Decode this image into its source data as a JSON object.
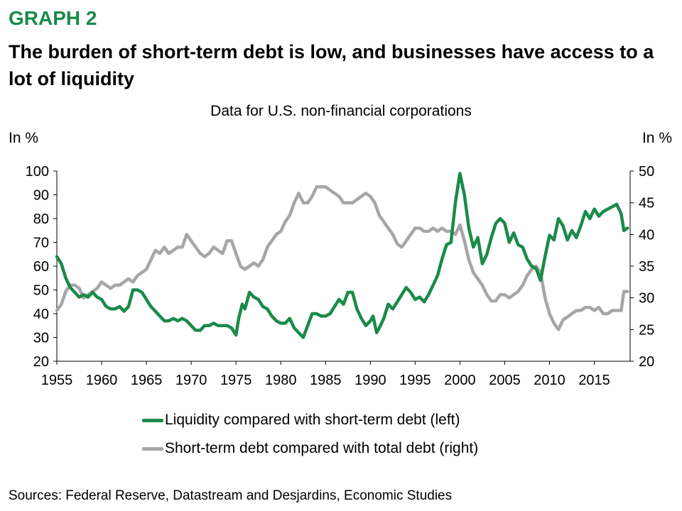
{
  "header": {
    "graph_label": "GRAPH 2",
    "headline": "The burden of short-term debt is low, and businesses have access to a lot of liquidity",
    "subtitle": "Data for U.S. non-financial corporations"
  },
  "footer": {
    "sources": "Sources: Federal Reserve, Datastream and Desjardins, Economic Studies"
  },
  "chart_data": {
    "type": "line",
    "title": "The burden of short-term debt is low, and businesses have access to a lot of liquidity",
    "subtitle": "Data for U.S. non-financial corporations",
    "ylabel_left": "In %",
    "ylabel_right": "In %",
    "xlim": [
      1955,
      2019
    ],
    "ylim_left": [
      20,
      100
    ],
    "ylim_right": [
      20,
      50
    ],
    "x_ticks": [
      1955,
      1960,
      1965,
      1970,
      1975,
      1980,
      1985,
      1990,
      1995,
      2000,
      2005,
      2010,
      2015
    ],
    "y_ticks_left": [
      20,
      30,
      40,
      50,
      60,
      70,
      80,
      90,
      100
    ],
    "y_ticks_right": [
      20,
      25,
      30,
      35,
      40,
      45,
      50
    ],
    "grid": false,
    "legend_position": "bottom-center",
    "series": [
      {
        "name": "Liquidity compared with short-term debt (left)",
        "axis": "left",
        "color": "#1a8a4a",
        "points": [
          [
            1955,
            64
          ],
          [
            1955.5,
            61
          ],
          [
            1956,
            55
          ],
          [
            1956.5,
            51
          ],
          [
            1957,
            49
          ],
          [
            1957.5,
            47
          ],
          [
            1958,
            48
          ],
          [
            1958.5,
            47
          ],
          [
            1959,
            49
          ],
          [
            1959.5,
            47
          ],
          [
            1960,
            46
          ],
          [
            1960.5,
            43
          ],
          [
            1961,
            42
          ],
          [
            1961.5,
            42
          ],
          [
            1962,
            43
          ],
          [
            1962.5,
            41
          ],
          [
            1963,
            43
          ],
          [
            1963.5,
            50
          ],
          [
            1964,
            50
          ],
          [
            1964.5,
            49
          ],
          [
            1965,
            46
          ],
          [
            1965.5,
            43
          ],
          [
            1966,
            41
          ],
          [
            1966.5,
            39
          ],
          [
            1967,
            37
          ],
          [
            1967.5,
            37
          ],
          [
            1968,
            38
          ],
          [
            1968.5,
            37
          ],
          [
            1969,
            38
          ],
          [
            1969.5,
            37
          ],
          [
            1970,
            35
          ],
          [
            1970.5,
            33
          ],
          [
            1971,
            33
          ],
          [
            1971.5,
            35
          ],
          [
            1972,
            35
          ],
          [
            1972.5,
            36
          ],
          [
            1973,
            35
          ],
          [
            1973.5,
            35
          ],
          [
            1974,
            35
          ],
          [
            1974.5,
            34
          ],
          [
            1975,
            31
          ],
          [
            1975.3,
            38
          ],
          [
            1975.7,
            44
          ],
          [
            1976,
            42
          ],
          [
            1976.5,
            49
          ],
          [
            1977,
            47
          ],
          [
            1977.5,
            46
          ],
          [
            1978,
            43
          ],
          [
            1978.5,
            42
          ],
          [
            1979,
            39
          ],
          [
            1979.5,
            37
          ],
          [
            1980,
            36
          ],
          [
            1980.5,
            36
          ],
          [
            1981,
            38
          ],
          [
            1981.5,
            34
          ],
          [
            1982,
            32
          ],
          [
            1982.5,
            30
          ],
          [
            1983,
            35
          ],
          [
            1983.5,
            40
          ],
          [
            1984,
            40
          ],
          [
            1984.5,
            39
          ],
          [
            1985,
            39
          ],
          [
            1985.5,
            40
          ],
          [
            1986,
            43
          ],
          [
            1986.5,
            46
          ],
          [
            1987,
            44
          ],
          [
            1987.5,
            49
          ],
          [
            1988,
            49
          ],
          [
            1988.5,
            42
          ],
          [
            1989,
            38
          ],
          [
            1989.5,
            35
          ],
          [
            1990,
            37
          ],
          [
            1990.3,
            39
          ],
          [
            1990.7,
            32
          ],
          [
            1991,
            34
          ],
          [
            1991.5,
            38
          ],
          [
            1992,
            44
          ],
          [
            1992.5,
            42
          ],
          [
            1993,
            45
          ],
          [
            1993.5,
            48
          ],
          [
            1994,
            51
          ],
          [
            1994.5,
            49
          ],
          [
            1995,
            46
          ],
          [
            1995.5,
            47
          ],
          [
            1996,
            45
          ],
          [
            1996.5,
            48
          ],
          [
            1997,
            52
          ],
          [
            1997.5,
            56
          ],
          [
            1998,
            63
          ],
          [
            1998.5,
            69
          ],
          [
            1999,
            70
          ],
          [
            1999.5,
            87
          ],
          [
            2000,
            99
          ],
          [
            2000.5,
            90
          ],
          [
            2001,
            76
          ],
          [
            2001.5,
            68
          ],
          [
            2002,
            72
          ],
          [
            2002.5,
            61
          ],
          [
            2003,
            65
          ],
          [
            2003.5,
            72
          ],
          [
            2004,
            78
          ],
          [
            2004.5,
            80
          ],
          [
            2005,
            78
          ],
          [
            2005.5,
            70
          ],
          [
            2006,
            74
          ],
          [
            2006.5,
            69
          ],
          [
            2007,
            68
          ],
          [
            2007.5,
            63
          ],
          [
            2008,
            60
          ],
          [
            2008.5,
            59
          ],
          [
            2009,
            54
          ],
          [
            2009.5,
            64
          ],
          [
            2010,
            73
          ],
          [
            2010.5,
            71
          ],
          [
            2011,
            80
          ],
          [
            2011.5,
            77
          ],
          [
            2012,
            71
          ],
          [
            2012.5,
            75
          ],
          [
            2013,
            72
          ],
          [
            2013.5,
            77
          ],
          [
            2014,
            83
          ],
          [
            2014.5,
            80
          ],
          [
            2015,
            84
          ],
          [
            2015.5,
            81
          ],
          [
            2016,
            83
          ],
          [
            2016.5,
            84
          ],
          [
            2017,
            85
          ],
          [
            2017.5,
            86
          ],
          [
            2018,
            82
          ],
          [
            2018.3,
            75
          ],
          [
            2018.7,
            76
          ]
        ]
      },
      {
        "name": "Short-term debt compared with total debt (right)",
        "axis": "right",
        "color": "#a6a6a6",
        "points": [
          [
            1955,
            28
          ],
          [
            1955.5,
            29
          ],
          [
            1956,
            31
          ],
          [
            1956.5,
            32
          ],
          [
            1957,
            32
          ],
          [
            1957.5,
            31.5
          ],
          [
            1958,
            30
          ],
          [
            1958.5,
            30.5
          ],
          [
            1959,
            31
          ],
          [
            1959.5,
            31.5
          ],
          [
            1960,
            32.5
          ],
          [
            1960.5,
            32
          ],
          [
            1961,
            31.5
          ],
          [
            1961.5,
            32
          ],
          [
            1962,
            32
          ],
          [
            1962.5,
            32.5
          ],
          [
            1963,
            33
          ],
          [
            1963.5,
            32.5
          ],
          [
            1964,
            33.5
          ],
          [
            1964.5,
            34
          ],
          [
            1965,
            34.5
          ],
          [
            1965.5,
            36
          ],
          [
            1966,
            37.5
          ],
          [
            1966.5,
            37
          ],
          [
            1967,
            38
          ],
          [
            1967.5,
            37
          ],
          [
            1968,
            37.5
          ],
          [
            1968.5,
            38
          ],
          [
            1969,
            38
          ],
          [
            1969.5,
            40
          ],
          [
            1970,
            39
          ],
          [
            1970.5,
            38
          ],
          [
            1971,
            37
          ],
          [
            1971.5,
            36.5
          ],
          [
            1972,
            37
          ],
          [
            1972.5,
            38
          ],
          [
            1973,
            37.5
          ],
          [
            1973.5,
            37
          ],
          [
            1974,
            39
          ],
          [
            1974.5,
            39
          ],
          [
            1975,
            37
          ],
          [
            1975.5,
            35
          ],
          [
            1976,
            34.5
          ],
          [
            1976.5,
            35
          ],
          [
            1977,
            35.5
          ],
          [
            1977.5,
            35
          ],
          [
            1978,
            36
          ],
          [
            1978.5,
            38
          ],
          [
            1979,
            39
          ],
          [
            1979.5,
            40
          ],
          [
            1980,
            40.5
          ],
          [
            1980.5,
            42
          ],
          [
            1981,
            43
          ],
          [
            1981.5,
            45
          ],
          [
            1982,
            46.5
          ],
          [
            1982.5,
            45
          ],
          [
            1983,
            45
          ],
          [
            1983.5,
            46
          ],
          [
            1984,
            47.5
          ],
          [
            1984.5,
            47.5
          ],
          [
            1985,
            47.5
          ],
          [
            1985.5,
            47
          ],
          [
            1986,
            46.5
          ],
          [
            1986.5,
            46
          ],
          [
            1987,
            45
          ],
          [
            1987.5,
            45
          ],
          [
            1988,
            45
          ],
          [
            1988.5,
            45.5
          ],
          [
            1989,
            46
          ],
          [
            1989.5,
            46.5
          ],
          [
            1990,
            46
          ],
          [
            1990.5,
            45
          ],
          [
            1991,
            43
          ],
          [
            1991.5,
            42
          ],
          [
            1992,
            41
          ],
          [
            1992.5,
            40
          ],
          [
            1993,
            38.5
          ],
          [
            1993.5,
            38
          ],
          [
            1994,
            39
          ],
          [
            1994.5,
            40
          ],
          [
            1995,
            41
          ],
          [
            1995.5,
            41
          ],
          [
            1996,
            40.5
          ],
          [
            1996.5,
            40.5
          ],
          [
            1997,
            41
          ],
          [
            1997.5,
            40.5
          ],
          [
            1998,
            41
          ],
          [
            1998.5,
            40.5
          ],
          [
            1999,
            40.5
          ],
          [
            1999.5,
            40
          ],
          [
            2000,
            41.5
          ],
          [
            2000.5,
            39
          ],
          [
            2001,
            36
          ],
          [
            2001.5,
            34
          ],
          [
            2002,
            33
          ],
          [
            2002.5,
            32
          ],
          [
            2003,
            30.5
          ],
          [
            2003.5,
            29.5
          ],
          [
            2004,
            29.5
          ],
          [
            2004.5,
            30.5
          ],
          [
            2005,
            30.5
          ],
          [
            2005.5,
            30
          ],
          [
            2006,
            30.5
          ],
          [
            2006.5,
            31
          ],
          [
            2007,
            32
          ],
          [
            2007.5,
            33.5
          ],
          [
            2008,
            34.5
          ],
          [
            2008.5,
            35
          ],
          [
            2009,
            34
          ],
          [
            2009.5,
            30
          ],
          [
            2010,
            27.5
          ],
          [
            2010.5,
            26
          ],
          [
            2011,
            25
          ],
          [
            2011.5,
            26.5
          ],
          [
            2012,
            27
          ],
          [
            2012.5,
            27.5
          ],
          [
            2013,
            28
          ],
          [
            2013.5,
            28
          ],
          [
            2014,
            28.5
          ],
          [
            2014.5,
            28.5
          ],
          [
            2015,
            28
          ],
          [
            2015.5,
            28.5
          ],
          [
            2016,
            27.5
          ],
          [
            2016.5,
            27.5
          ],
          [
            2017,
            28
          ],
          [
            2017.5,
            28
          ],
          [
            2018,
            28
          ],
          [
            2018.3,
            31
          ],
          [
            2018.7,
            31
          ]
        ]
      }
    ]
  }
}
